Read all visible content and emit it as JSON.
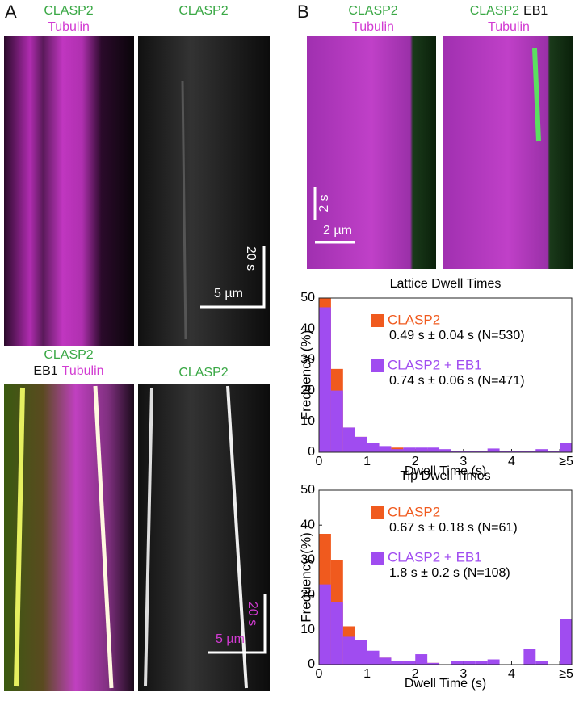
{
  "panel_a": {
    "letter": "A",
    "top_left": {
      "lines": [
        [
          "CLASP2"
        ],
        [
          "Tubulin"
        ]
      ]
    },
    "top_right": {
      "lines": [
        [
          "CLASP2"
        ]
      ]
    },
    "top_scale": {
      "time": "20 s",
      "length": "5 µm"
    },
    "bottom_left": {
      "lines": [
        [
          "CLASP2"
        ],
        [
          "EB1",
          "Tubulin"
        ]
      ]
    },
    "bottom_right": {
      "lines": [
        [
          "CLASP2"
        ]
      ]
    },
    "bottom_scale": {
      "time": "20 s",
      "length": "5 µm"
    }
  },
  "panel_b": {
    "letter": "B",
    "left": {
      "lines": [
        [
          "CLASP2"
        ],
        [
          "Tubulin"
        ]
      ]
    },
    "right": {
      "lines": [
        [
          "CLASP2",
          "EB1"
        ],
        [
          "Tubulin"
        ]
      ]
    },
    "scale": {
      "time": "2 s",
      "length": "2 µm"
    }
  },
  "chart_data": [
    {
      "type": "histogram",
      "title": "Lattice Dwell Times",
      "xlabel": "Dwell Time (s)",
      "ylabel": "Frequency (%)",
      "bins": [
        0,
        0.25,
        0.5,
        0.75,
        1,
        1.25,
        1.5,
        1.75,
        2,
        2.25,
        2.5,
        2.75,
        3,
        3.25,
        3.5,
        3.75,
        4,
        4.25,
        4.5,
        4.75,
        5,
        5.25
      ],
      "series": [
        {
          "name": "CLASP2",
          "color": "#f05a1e",
          "annotation": "0.49 s ± 0.04 s (N=530)",
          "values": [
            50,
            27,
            8,
            5,
            3,
            1,
            1.5,
            1,
            1,
            1,
            0.5,
            0.3,
            0.5,
            0.3,
            0.3,
            0.3,
            0.3,
            0.5,
            0.3,
            0.3,
            2
          ]
        },
        {
          "name": "CLASP2 + EB1",
          "color": "#a04cf0",
          "annotation": "0.74 s ± 0.06 s (N=471)",
          "values": [
            47,
            20,
            8,
            5,
            3,
            2,
            1,
            1.5,
            1.5,
            1.5,
            1,
            0.5,
            0.5,
            0.3,
            1.2,
            0.5,
            0.3,
            0.5,
            1,
            0.5,
            3
          ]
        }
      ],
      "xlim": [
        0,
        5.25
      ],
      "ylim": [
        0,
        50
      ],
      "xticks": [
        0,
        1,
        2,
        3,
        4,
        {
          "value": 5,
          "label": "≥5"
        }
      ],
      "yticks": [
        0,
        10,
        20,
        30,
        40,
        50
      ]
    },
    {
      "type": "histogram",
      "title": "Tip Dwell Times",
      "xlabel": "Dwell Time (s)",
      "ylabel": "Frequency (%)",
      "bins": [
        0,
        0.25,
        0.5,
        0.75,
        1,
        1.25,
        1.5,
        1.75,
        2,
        2.25,
        2.5,
        2.75,
        3,
        3.25,
        3.5,
        3.75,
        4,
        4.25,
        4.5,
        4.75,
        5,
        5.25
      ],
      "series": [
        {
          "name": "CLASP2",
          "color": "#f05a1e",
          "annotation": "0.67 s ± 0.18 s (N=61)",
          "values": [
            37.5,
            30,
            11,
            6,
            3,
            2,
            1,
            1,
            1,
            0.5,
            0,
            0,
            0,
            0,
            0,
            0,
            0,
            0,
            0,
            0,
            10
          ]
        },
        {
          "name": "CLASP2 + EB1",
          "color": "#a04cf0",
          "annotation": "1.8 s ± 0.2 s (N=108)",
          "values": [
            23,
            18,
            8,
            7,
            4,
            2,
            1,
            1,
            3,
            0.5,
            0,
            1,
            1,
            1,
            1.5,
            0,
            0,
            4.5,
            1,
            0,
            13
          ]
        }
      ],
      "xlim": [
        0,
        5.25
      ],
      "ylim": [
        0,
        50
      ],
      "xticks": [
        0,
        1,
        2,
        3,
        4,
        {
          "value": 5,
          "label": "≥5"
        }
      ],
      "yticks": [
        0,
        10,
        20,
        30,
        40,
        50
      ]
    }
  ]
}
